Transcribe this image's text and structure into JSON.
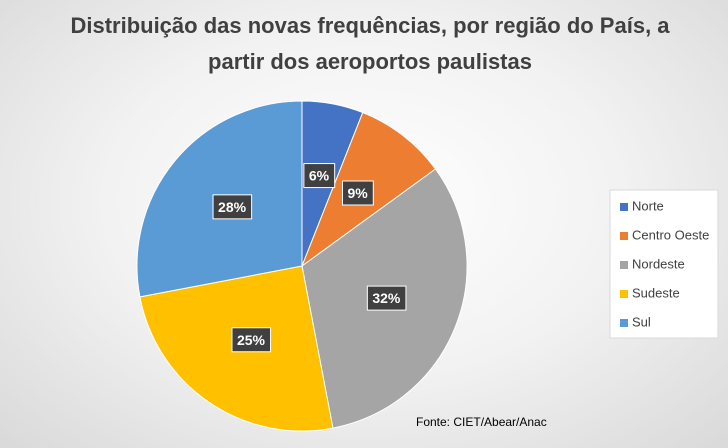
{
  "chart_data": {
    "type": "pie",
    "title": "Distribuição das novas frequências, por região do País, a partir dos aeroportos paulistas",
    "categories": [
      "Norte",
      "Centro Oeste",
      "Nordeste",
      "Sudeste",
      "Sul"
    ],
    "values": [
      6,
      9,
      32,
      25,
      28
    ],
    "value_labels": [
      "6%",
      "9%",
      "32%",
      "25%",
      "28%"
    ],
    "colors": [
      "#4472c4",
      "#ed7d31",
      "#a5a5a5",
      "#ffc000",
      "#5b9bd5"
    ],
    "legend": "right",
    "source": "Fonte: CIET/Abear/Anac"
  }
}
